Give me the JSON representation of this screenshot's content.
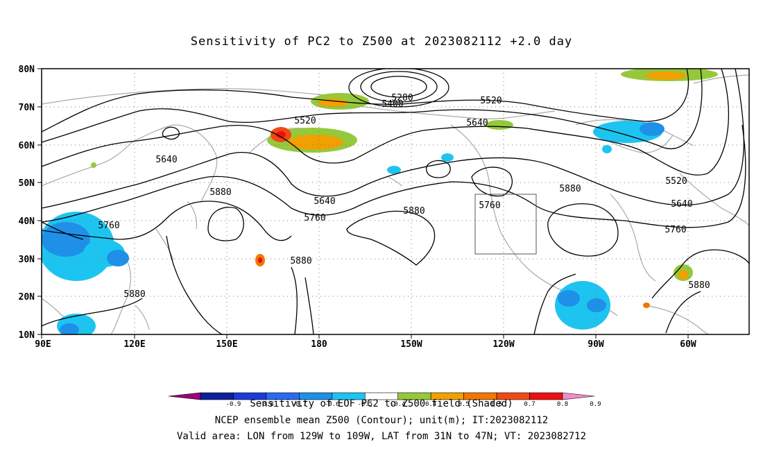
{
  "title": "Sensitivity of PC2 to Z500 at 2023082112 +2.0 day",
  "lat_labels": [
    "80N",
    "70N",
    "60N",
    "50N",
    "40N",
    "30N",
    "20N",
    "10N"
  ],
  "lon_labels": [
    "90E",
    "120E",
    "150E",
    "180",
    "150W",
    "120W",
    "90W",
    "60W"
  ],
  "contour_labels": [
    "5280",
    "5400",
    "5520",
    "5520",
    "5640",
    "5640",
    "5640",
    "5640",
    "5880",
    "5880",
    "5880",
    "5880",
    "5880",
    "5760",
    "5760",
    "5760",
    "5760",
    "5520",
    "5880"
  ],
  "colorbar": {
    "colors": [
      "#a0007a",
      "#0e1f9c",
      "#1a3cd8",
      "#2a6af0",
      "#1e90e8",
      "#1ec4f0",
      "#ffffff",
      "#96c83c",
      "#f0a000",
      "#f07800",
      "#f04a14",
      "#ee1010",
      "#f28cc8"
    ],
    "tick_labels": [
      "-0.9",
      "-0.8",
      "-0.7",
      "-0.6",
      "-0.5",
      "-0.4",
      "0.4",
      "0.5",
      "0.6",
      "0.7",
      "0.8",
      "0.9"
    ]
  },
  "caption_line1": "Sensitivity of EOF PC2 to Z500 field (Shaded)",
  "caption_line2": "NCEP ensemble mean Z500 (Contour); unit(m); IT:2023082112",
  "caption_line3": "Valid area: LON from 129W to 109W, LAT from 31N to 47N; VT: 2023082712"
}
